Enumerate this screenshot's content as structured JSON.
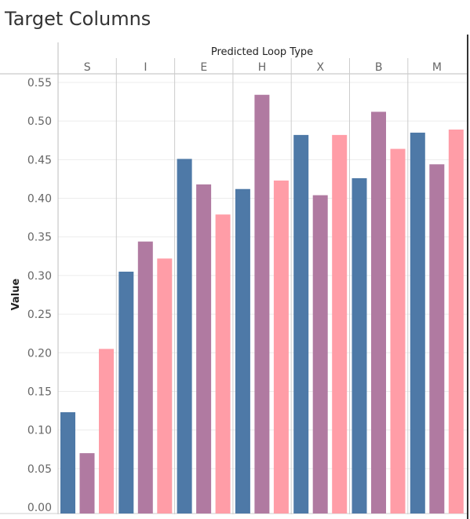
{
  "chart_data": {
    "type": "bar",
    "title": "Target Columns",
    "column_header": "Predicted Loop Type",
    "ylabel": "Value",
    "categories": [
      "S",
      "I",
      "E",
      "H",
      "X",
      "B",
      "M"
    ],
    "ylim": [
      0,
      0.55
    ],
    "yticks": [
      "0.00",
      "0.05",
      "0.10",
      "0.15",
      "0.20",
      "0.25",
      "0.30",
      "0.35",
      "0.40",
      "0.45",
      "0.50",
      "0.55"
    ],
    "grid": true,
    "series": [
      {
        "color": "#4e79a7",
        "values": [
          0.123,
          0.305,
          0.451,
          0.412,
          0.482,
          0.426,
          0.485
        ]
      },
      {
        "color": "#b07aa1",
        "values": [
          0.07,
          0.344,
          0.418,
          0.534,
          0.404,
          0.512,
          0.444
        ]
      },
      {
        "color": "#ff9da7",
        "values": [
          0.205,
          0.322,
          0.379,
          0.423,
          0.482,
          0.464,
          0.489
        ]
      }
    ]
  }
}
